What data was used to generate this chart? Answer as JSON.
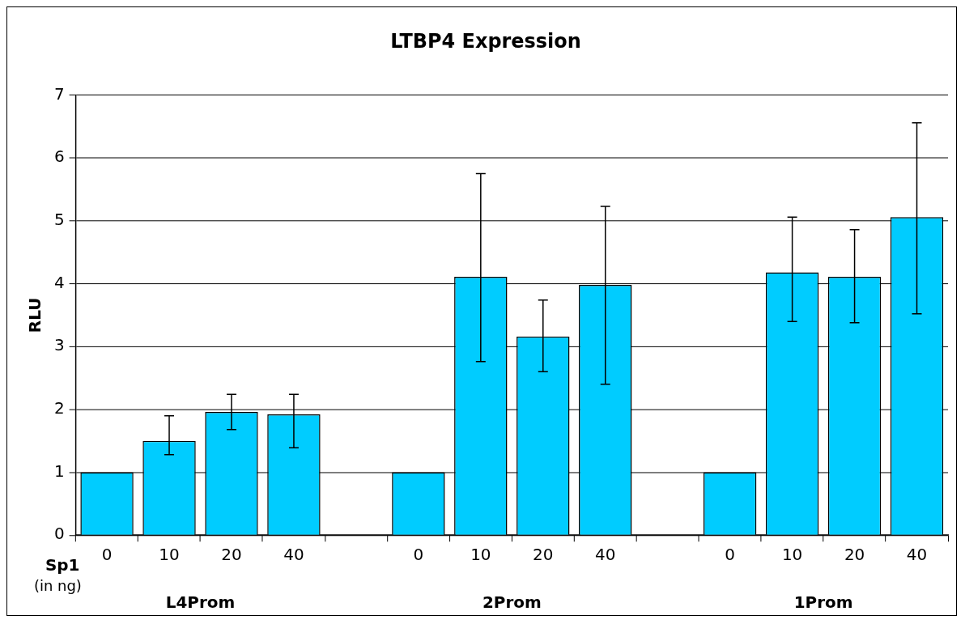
{
  "chart_data": {
    "type": "bar",
    "title": "LTBP4 Expression",
    "ylabel": "RLU",
    "categories": [
      "0",
      "10",
      "20",
      "40",
      null,
      "0",
      "10",
      "20",
      "40",
      null,
      "0",
      "10",
      "20",
      "40"
    ],
    "values": [
      1,
      1.5,
      1.96,
      1.92,
      null,
      1,
      4.11,
      3.16,
      3.98,
      null,
      1,
      4.18,
      4.11,
      5.06
    ],
    "errors": [
      null,
      [
        1.28,
        1.9
      ],
      [
        1.68,
        2.24
      ],
      [
        1.39,
        2.24
      ],
      null,
      null,
      [
        2.76,
        5.75
      ],
      [
        2.6,
        3.74
      ],
      [
        2.4,
        5.23
      ],
      null,
      null,
      [
        3.4,
        5.06
      ],
      [
        3.38,
        4.86
      ],
      [
        3.52,
        6.56
      ]
    ],
    "color": "#00ccff",
    "ylim": [
      0,
      7
    ],
    "yticks": [
      0,
      1,
      2,
      3,
      4,
      5,
      6,
      7
    ],
    "grid": "y",
    "legend": false,
    "annotations": [
      "Sp1",
      "(in ng)",
      "L4Prom",
      "2Prom",
      "1Prom"
    ]
  }
}
